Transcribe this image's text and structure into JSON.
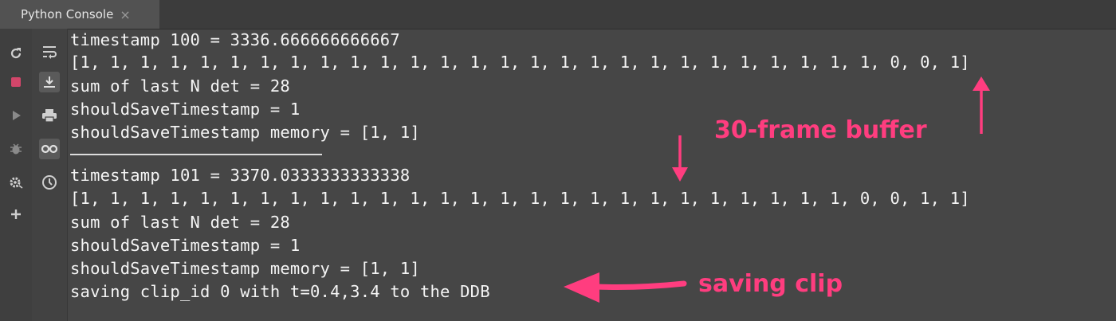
{
  "window": {
    "tab_title": "Python Console",
    "close_glyph": "×"
  },
  "left_gutter_icons": [
    "rerun-icon",
    "stop-icon",
    "run-icon",
    "debug-icon",
    "settings-icon",
    "add-icon"
  ],
  "tool_gutter_icons": [
    "soft-wrap-icon",
    "scroll-to-end-icon",
    "print-icon",
    "show-variables-icon",
    "history-icon"
  ],
  "console": {
    "lines": [
      "timestamp 100 = 3336.666666666667",
      "[1, 1, 1, 1, 1, 1, 1, 1, 1, 1, 1, 1, 1, 1, 1, 1, 1, 1, 1, 1, 1, 1, 1, 1, 1, 1, 1, 0, 0, 1]",
      "sum of last N det = 28",
      "shouldSaveTimestamp = 1",
      "shouldSaveTimestamp memory = [1, 1]",
      "timestamp 101 = 3370.0333333333338",
      "[1, 1, 1, 1, 1, 1, 1, 1, 1, 1, 1, 1, 1, 1, 1, 1, 1, 1, 1, 1, 1, 1, 1, 1, 1, 1, 0, 0, 1, 1]",
      "sum of last N det = 28",
      "shouldSaveTimestamp = 1",
      "shouldSaveTimestamp memory = [1, 1]",
      "saving clip_id 0 with t=0.4,3.4 to the DDB"
    ]
  },
  "annotations": {
    "buffer_label": "30-frame buffer",
    "saving_label": "saving clip",
    "color": "#ff3d7f"
  }
}
